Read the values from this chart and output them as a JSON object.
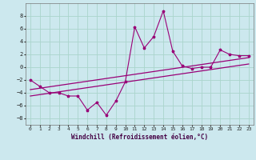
{
  "xlabel": "Windchill (Refroidissement éolien,°C)",
  "background_color": "#cce8ee",
  "grid_color": "#aad4cc",
  "line_color": "#990077",
  "xlim": [
    -0.5,
    23.5
  ],
  "ylim": [
    -9,
    10
  ],
  "xticks": [
    0,
    1,
    2,
    3,
    4,
    5,
    6,
    7,
    8,
    9,
    10,
    11,
    12,
    13,
    14,
    15,
    16,
    17,
    18,
    19,
    20,
    21,
    22,
    23
  ],
  "yticks": [
    -8,
    -6,
    -4,
    -2,
    0,
    2,
    4,
    6,
    8
  ],
  "series1_x": [
    0,
    1,
    2,
    3,
    4,
    5,
    6,
    7,
    8,
    9,
    10,
    11,
    12,
    13,
    14,
    15,
    16,
    17,
    18,
    19,
    20,
    21,
    22,
    23
  ],
  "series1_y": [
    -2.0,
    -3.0,
    -4.0,
    -4.0,
    -4.5,
    -4.5,
    -6.7,
    -5.5,
    -7.5,
    -5.3,
    -2.3,
    6.3,
    3.0,
    4.8,
    8.8,
    2.5,
    0.2,
    -0.2,
    0.0,
    0.0,
    2.7,
    2.0,
    1.8,
    1.8
  ],
  "line2_x": [
    0,
    23
  ],
  "line2_y": [
    -3.5,
    1.5
  ],
  "line3_x": [
    0,
    23
  ],
  "line3_y": [
    -4.5,
    0.5
  ]
}
